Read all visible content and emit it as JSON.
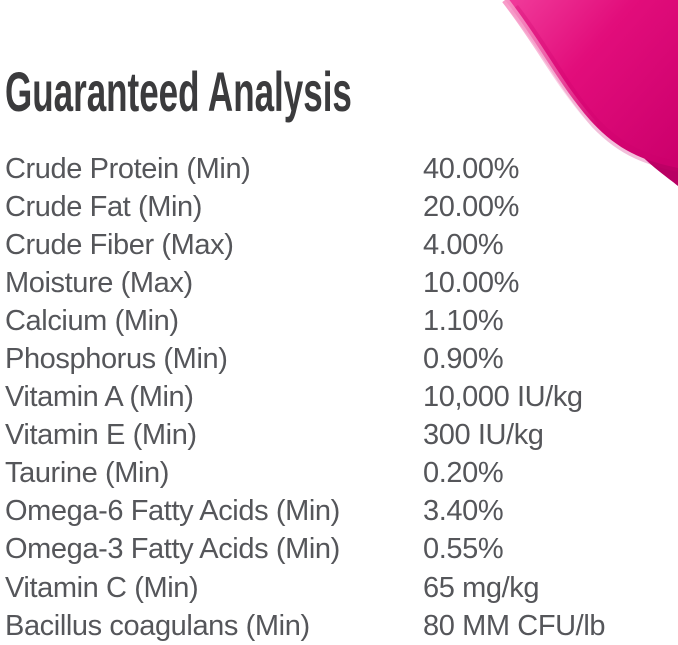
{
  "theme": {
    "background": "#FFFFFF",
    "title_color": "#3B3B3D",
    "body_color": "#55565A",
    "swoosh_bright": "#F03999",
    "swoosh_main": "#E20D7B",
    "swoosh_deep": "#CC006C",
    "swoosh_dark": "#B80063",
    "swoosh_highlight": "#F795C5"
  },
  "header": {
    "title": "Guaranteed Analysis"
  },
  "analysis_table": {
    "rows": [
      {
        "label": "Crude Protein (Min)",
        "value": "40.00%"
      },
      {
        "label": "Crude Fat (Min)",
        "value": "20.00%"
      },
      {
        "label": "Crude Fiber (Max)",
        "value": "4.00%"
      },
      {
        "label": "Moisture (Max)",
        "value": "10.00%"
      },
      {
        "label": "Calcium (Min)",
        "value": "1.10%"
      },
      {
        "label": "Phosphorus (Min)",
        "value": "0.90%"
      },
      {
        "label": "Vitamin A (Min)",
        "value": "10,000 IU/kg"
      },
      {
        "label": "Vitamin E (Min)",
        "value": "300 IU/kg"
      },
      {
        "label": "Taurine (Min)",
        "value": "0.20%"
      },
      {
        "label": "Omega-6 Fatty Acids (Min)",
        "value": "3.40%"
      },
      {
        "label": "Omega-3 Fatty Acids (Min)",
        "value": "0.55%"
      },
      {
        "label": "Vitamin C (Min)",
        "value": "65 mg/kg"
      },
      {
        "label": "Bacillus coagulans (Min)",
        "value": "80 MM CFU/lb"
      }
    ]
  }
}
